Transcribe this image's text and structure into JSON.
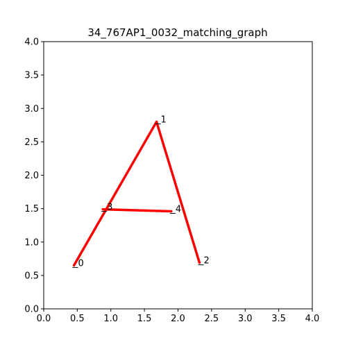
{
  "chart_data": {
    "type": "graph",
    "title": "34_767AP1_0032_matching_graph",
    "xlim": [
      0,
      4
    ],
    "ylim": [
      0,
      4
    ],
    "xticks": [
      "0.0",
      "0.5",
      "1.0",
      "1.5",
      "2.0",
      "2.5",
      "3.0",
      "3.5",
      "4.0"
    ],
    "yticks": [
      "0.0",
      "0.5",
      "1.0",
      "1.5",
      "2.0",
      "2.5",
      "3.0",
      "3.5",
      "4.0"
    ],
    "grid": false,
    "edge_color": "#ff0000",
    "nodes": [
      {
        "label": "0",
        "x": 0.45,
        "y": 0.65
      },
      {
        "label": "1",
        "x": 1.68,
        "y": 2.8
      },
      {
        "label": "2",
        "x": 2.32,
        "y": 0.69
      },
      {
        "label": "3",
        "x": 0.88,
        "y": 1.49
      },
      {
        "label": "4",
        "x": 1.9,
        "y": 1.46
      }
    ],
    "edges": [
      [
        0,
        1
      ],
      [
        1,
        2
      ],
      [
        3,
        4
      ]
    ]
  }
}
